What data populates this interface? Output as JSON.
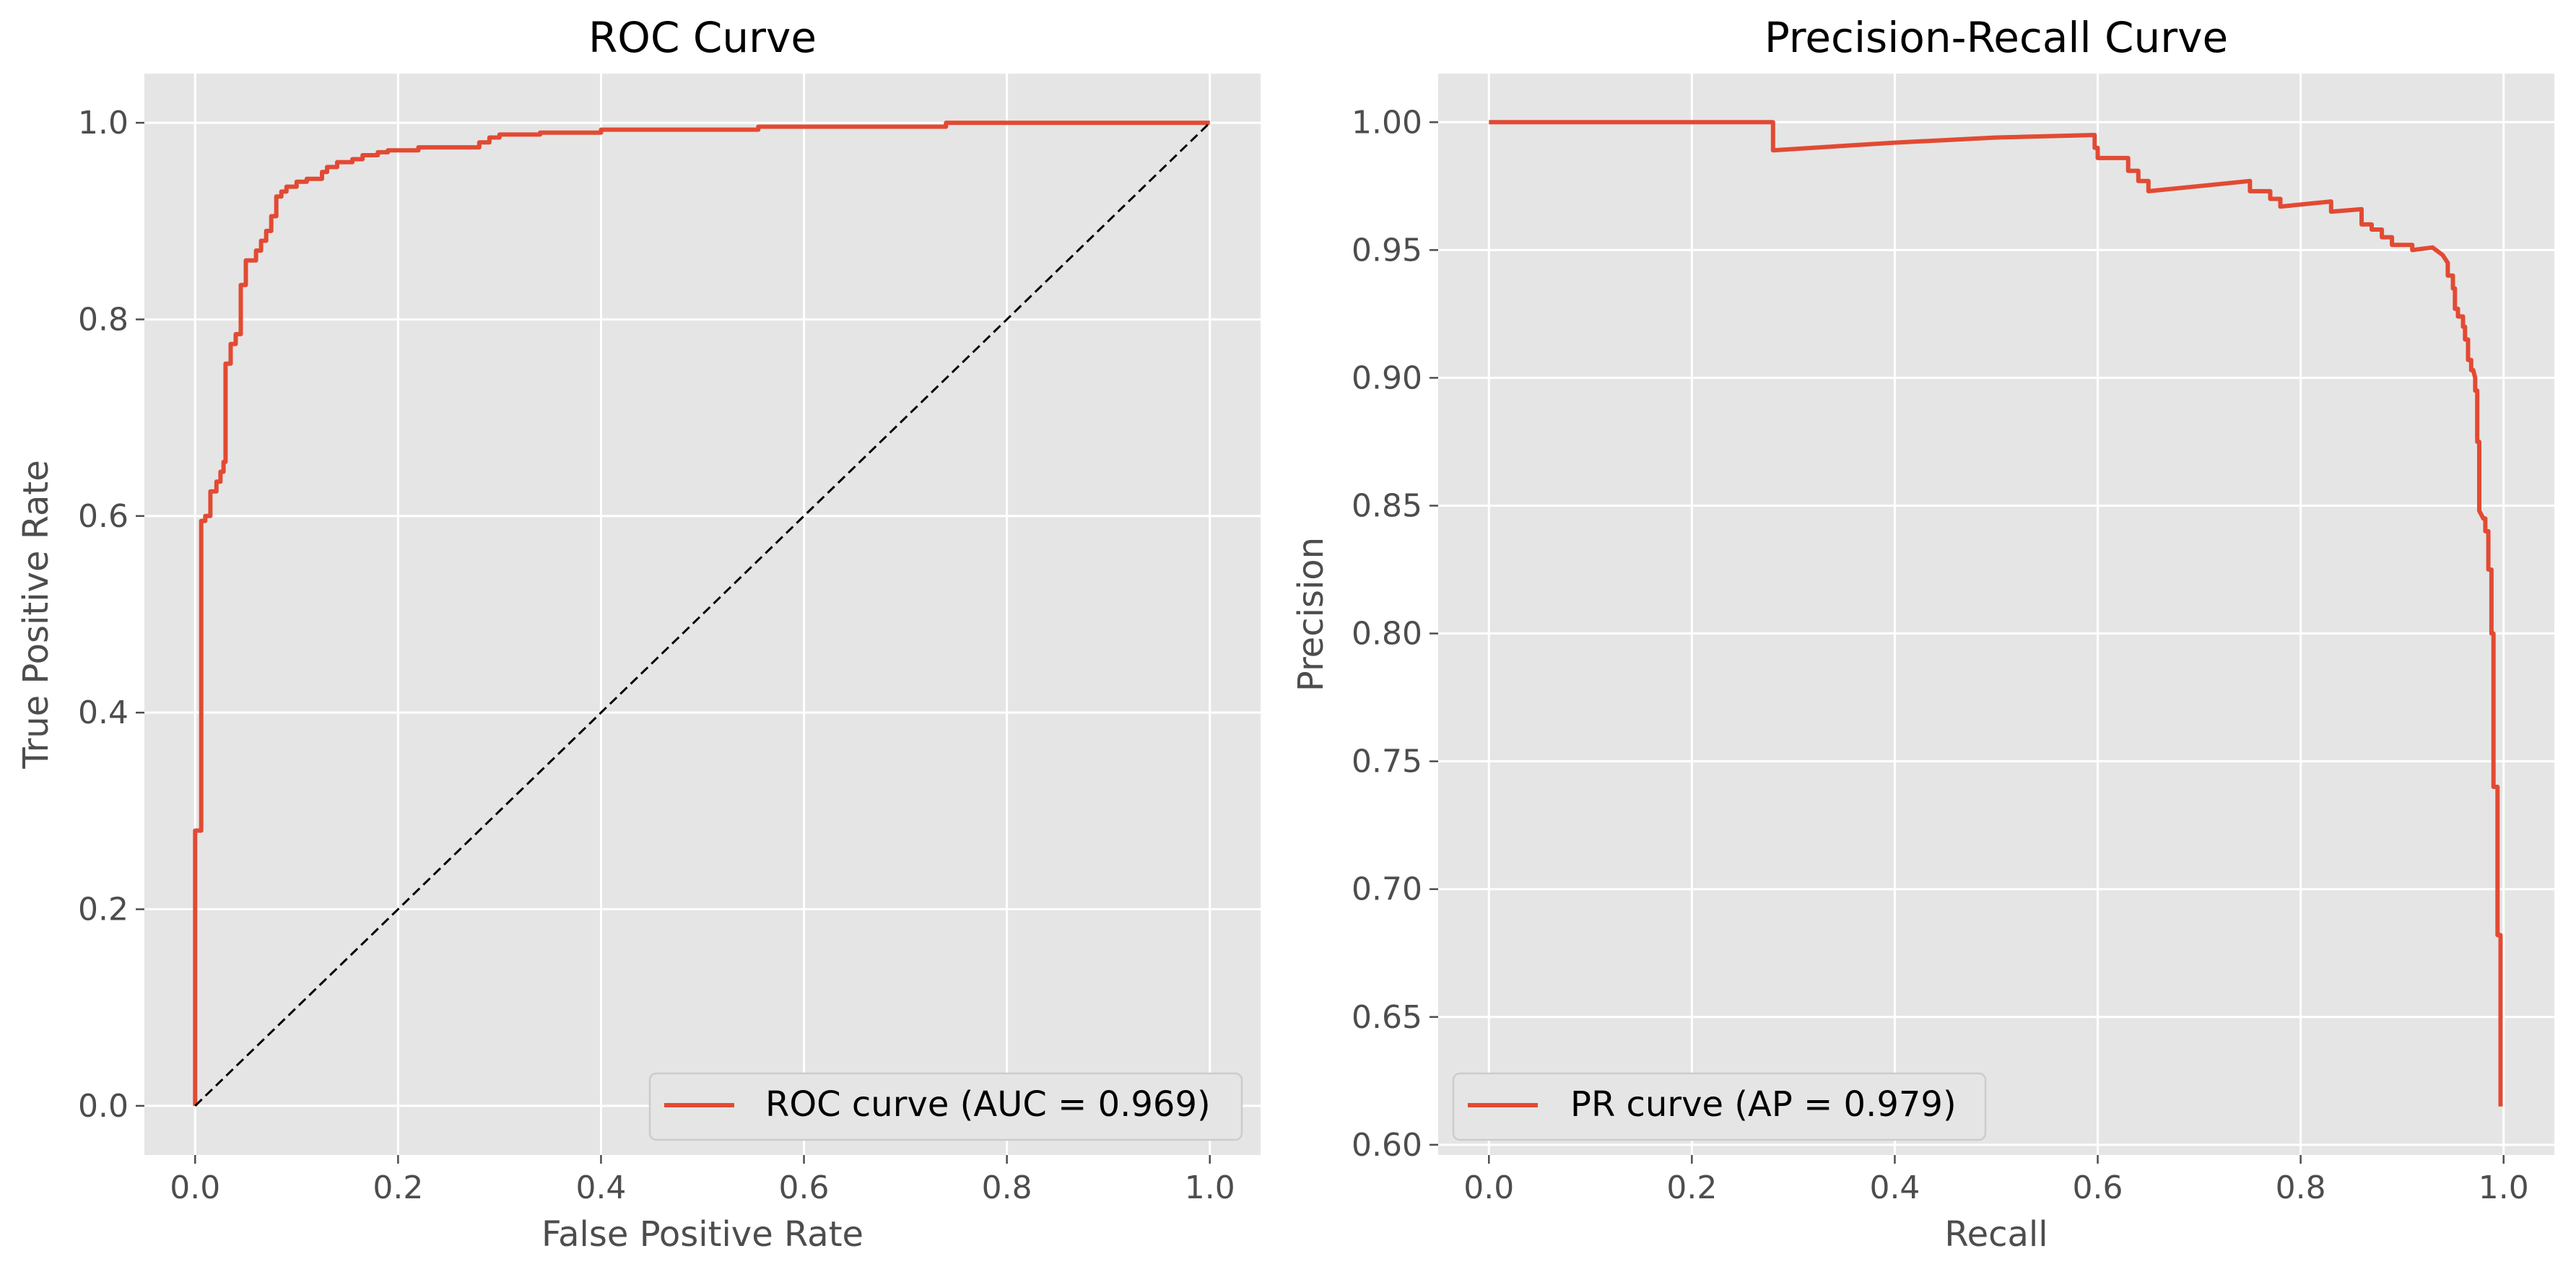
{
  "chart_data": [
    {
      "type": "line",
      "title": "ROC Curve",
      "xlabel": "False Positive Rate",
      "ylabel": "True Positive Rate",
      "xlim": [
        -0.05,
        1.05
      ],
      "ylim": [
        -0.05,
        1.05
      ],
      "xticks": [
        0.0,
        0.2,
        0.4,
        0.6,
        0.8,
        1.0
      ],
      "xtick_labels": [
        "0.0",
        "0.2",
        "0.4",
        "0.6",
        "0.8",
        "1.0"
      ],
      "yticks": [
        0.0,
        0.2,
        0.4,
        0.6,
        0.8,
        1.0
      ],
      "ytick_labels": [
        "0.0",
        "0.2",
        "0.4",
        "0.6",
        "0.8",
        "1.0"
      ],
      "grid": true,
      "legend_position": "lower-right",
      "series": [
        {
          "name": "ROC curve (AUC = 0.969)",
          "color": "#e24a33",
          "step": true,
          "points": [
            [
              0.0,
              0.0
            ],
            [
              0.0,
              0.28
            ],
            [
              0.006,
              0.28
            ],
            [
              0.006,
              0.595
            ],
            [
              0.01,
              0.595
            ],
            [
              0.01,
              0.6
            ],
            [
              0.015,
              0.6
            ],
            [
              0.015,
              0.625
            ],
            [
              0.021,
              0.625
            ],
            [
              0.021,
              0.635
            ],
            [
              0.025,
              0.635
            ],
            [
              0.025,
              0.645
            ],
            [
              0.028,
              0.645
            ],
            [
              0.028,
              0.655
            ],
            [
              0.03,
              0.655
            ],
            [
              0.03,
              0.755
            ],
            [
              0.035,
              0.755
            ],
            [
              0.035,
              0.775
            ],
            [
              0.04,
              0.775
            ],
            [
              0.04,
              0.785
            ],
            [
              0.045,
              0.785
            ],
            [
              0.045,
              0.835
            ],
            [
              0.05,
              0.835
            ],
            [
              0.05,
              0.86
            ],
            [
              0.06,
              0.86
            ],
            [
              0.06,
              0.87
            ],
            [
              0.065,
              0.87
            ],
            [
              0.065,
              0.88
            ],
            [
              0.07,
              0.88
            ],
            [
              0.07,
              0.89
            ],
            [
              0.075,
              0.89
            ],
            [
              0.075,
              0.905
            ],
            [
              0.08,
              0.905
            ],
            [
              0.08,
              0.925
            ],
            [
              0.085,
              0.925
            ],
            [
              0.085,
              0.93
            ],
            [
              0.09,
              0.93
            ],
            [
              0.09,
              0.935
            ],
            [
              0.1,
              0.935
            ],
            [
              0.1,
              0.94
            ],
            [
              0.11,
              0.94
            ],
            [
              0.11,
              0.943
            ],
            [
              0.125,
              0.943
            ],
            [
              0.125,
              0.95
            ],
            [
              0.13,
              0.95
            ],
            [
              0.13,
              0.955
            ],
            [
              0.14,
              0.955
            ],
            [
              0.14,
              0.96
            ],
            [
              0.155,
              0.96
            ],
            [
              0.155,
              0.963
            ],
            [
              0.165,
              0.963
            ],
            [
              0.165,
              0.967
            ],
            [
              0.18,
              0.967
            ],
            [
              0.18,
              0.97
            ],
            [
              0.19,
              0.97
            ],
            [
              0.19,
              0.972
            ],
            [
              0.22,
              0.972
            ],
            [
              0.22,
              0.975
            ],
            [
              0.28,
              0.975
            ],
            [
              0.28,
              0.98
            ],
            [
              0.29,
              0.98
            ],
            [
              0.29,
              0.985
            ],
            [
              0.3,
              0.985
            ],
            [
              0.3,
              0.988
            ],
            [
              0.34,
              0.988
            ],
            [
              0.34,
              0.99
            ],
            [
              0.4,
              0.99
            ],
            [
              0.4,
              0.993
            ],
            [
              0.555,
              0.993
            ],
            [
              0.555,
              0.996
            ],
            [
              0.74,
              0.996
            ],
            [
              0.74,
              1.0
            ],
            [
              1.0,
              1.0
            ]
          ]
        },
        {
          "name": "",
          "color": "#000000",
          "dashed": true,
          "points": [
            [
              0.0,
              0.0
            ],
            [
              1.0,
              1.0
            ]
          ]
        }
      ]
    },
    {
      "type": "line",
      "title": "Precision-Recall Curve",
      "xlabel": "Recall",
      "ylabel": "Precision",
      "xlim": [
        -0.05,
        1.05
      ],
      "ylim": [
        0.596,
        1.019
      ],
      "xticks": [
        0.0,
        0.2,
        0.4,
        0.6,
        0.8,
        1.0
      ],
      "xtick_labels": [
        "0.0",
        "0.2",
        "0.4",
        "0.6",
        "0.8",
        "1.0"
      ],
      "yticks": [
        0.6,
        0.65,
        0.7,
        0.75,
        0.8,
        0.85,
        0.9,
        0.95,
        1.0
      ],
      "ytick_labels": [
        "0.60",
        "0.65",
        "0.70",
        "0.75",
        "0.80",
        "0.85",
        "0.90",
        "0.95",
        "1.00"
      ],
      "grid": true,
      "legend_position": "lower-left",
      "series": [
        {
          "name": "PR curve (AP = 0.979)",
          "color": "#e24a33",
          "points": [
            [
              0.0,
              1.0
            ],
            [
              0.28,
              1.0
            ],
            [
              0.28,
              0.989
            ],
            [
              0.4,
              0.992
            ],
            [
              0.5,
              0.994
            ],
            [
              0.597,
              0.995
            ],
            [
              0.597,
              0.99
            ],
            [
              0.6,
              0.99
            ],
            [
              0.6,
              0.986
            ],
            [
              0.63,
              0.986
            ],
            [
              0.63,
              0.981
            ],
            [
              0.64,
              0.981
            ],
            [
              0.64,
              0.977
            ],
            [
              0.65,
              0.977
            ],
            [
              0.65,
              0.973
            ],
            [
              0.75,
              0.977
            ],
            [
              0.75,
              0.973
            ],
            [
              0.77,
              0.973
            ],
            [
              0.77,
              0.97
            ],
            [
              0.78,
              0.97
            ],
            [
              0.78,
              0.967
            ],
            [
              0.83,
              0.969
            ],
            [
              0.83,
              0.965
            ],
            [
              0.86,
              0.966
            ],
            [
              0.86,
              0.96
            ],
            [
              0.87,
              0.96
            ],
            [
              0.87,
              0.958
            ],
            [
              0.88,
              0.958
            ],
            [
              0.88,
              0.955
            ],
            [
              0.89,
              0.955
            ],
            [
              0.89,
              0.952
            ],
            [
              0.9,
              0.952
            ],
            [
              0.91,
              0.952
            ],
            [
              0.91,
              0.95
            ],
            [
              0.93,
              0.951
            ],
            [
              0.94,
              0.948
            ],
            [
              0.945,
              0.945
            ],
            [
              0.945,
              0.94
            ],
            [
              0.95,
              0.94
            ],
            [
              0.95,
              0.935
            ],
            [
              0.952,
              0.935
            ],
            [
              0.952,
              0.927
            ],
            [
              0.955,
              0.927
            ],
            [
              0.955,
              0.924
            ],
            [
              0.96,
              0.924
            ],
            [
              0.96,
              0.92
            ],
            [
              0.962,
              0.92
            ],
            [
              0.962,
              0.915
            ],
            [
              0.965,
              0.915
            ],
            [
              0.965,
              0.907
            ],
            [
              0.968,
              0.907
            ],
            [
              0.968,
              0.903
            ],
            [
              0.97,
              0.903
            ],
            [
              0.972,
              0.9
            ],
            [
              0.972,
              0.895
            ],
            [
              0.974,
              0.895
            ],
            [
              0.974,
              0.875
            ],
            [
              0.976,
              0.875
            ],
            [
              0.976,
              0.848
            ],
            [
              0.98,
              0.845
            ],
            [
              0.982,
              0.845
            ],
            [
              0.982,
              0.84
            ],
            [
              0.985,
              0.84
            ],
            [
              0.985,
              0.825
            ],
            [
              0.988,
              0.825
            ],
            [
              0.988,
              0.8
            ],
            [
              0.99,
              0.8
            ],
            [
              0.99,
              0.74
            ],
            [
              0.994,
              0.74
            ],
            [
              0.994,
              0.682
            ],
            [
              0.997,
              0.682
            ],
            [
              0.997,
              0.615
            ]
          ]
        }
      ]
    }
  ]
}
